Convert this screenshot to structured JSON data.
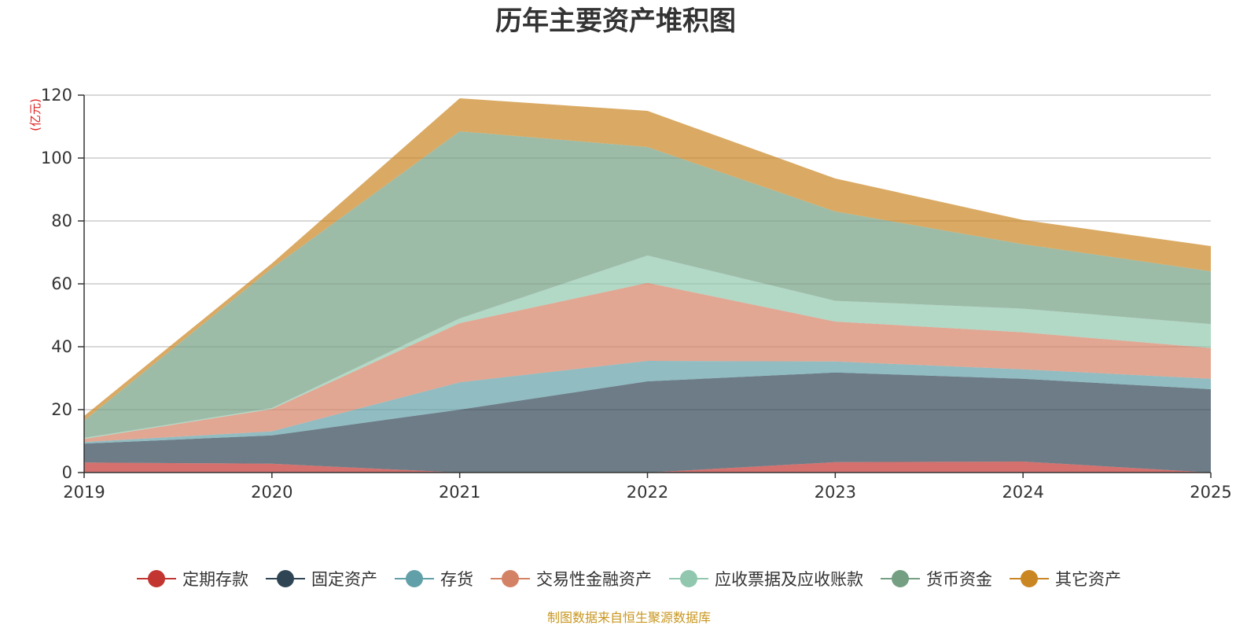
{
  "chart_data": {
    "type": "area",
    "stacked": true,
    "title": "历年主要资产堆积图",
    "ylabel": "(亿元)",
    "xlabel": "",
    "categories": [
      "2019",
      "2020",
      "2021",
      "2022",
      "2023",
      "2024",
      "2025"
    ],
    "ylim": [
      0,
      120
    ],
    "yticks": [
      0,
      20,
      40,
      60,
      80,
      100,
      120
    ],
    "grid": true,
    "legend_position": "bottom",
    "series": [
      {
        "name": "定期存款",
        "color": "#c23531",
        "values": [
          3.2,
          2.8,
          0,
          0,
          3.3,
          3.5,
          0
        ]
      },
      {
        "name": "固定资产",
        "color": "#2f4554",
        "values": [
          6.0,
          9.0,
          20.0,
          29.0,
          28.5,
          26.3,
          26.5
        ]
      },
      {
        "name": "存货",
        "color": "#61a0a8",
        "values": [
          0.5,
          1.3,
          8.7,
          6.5,
          3.5,
          3.0,
          3.3
        ]
      },
      {
        "name": "交易性金融资产",
        "color": "#d48265",
        "values": [
          1.0,
          7.1,
          18.8,
          24.8,
          12.7,
          11.8,
          9.8
        ]
      },
      {
        "name": "应收票据及应收账款",
        "color": "#91c7ae",
        "values": [
          0.3,
          0.3,
          1.5,
          8.7,
          6.6,
          7.5,
          7.6
        ]
      },
      {
        "name": "货币资金",
        "color": "#749f83",
        "values": [
          5.5,
          44.5,
          59.5,
          34.5,
          28.4,
          20.5,
          16.8
        ]
      },
      {
        "name": "其它资产",
        "color": "#ca8622",
        "values": [
          1.5,
          1.5,
          10.5,
          11.5,
          10.5,
          7.7,
          8.0
        ]
      }
    ],
    "source": "制图数据来自恒生聚源数据库"
  }
}
